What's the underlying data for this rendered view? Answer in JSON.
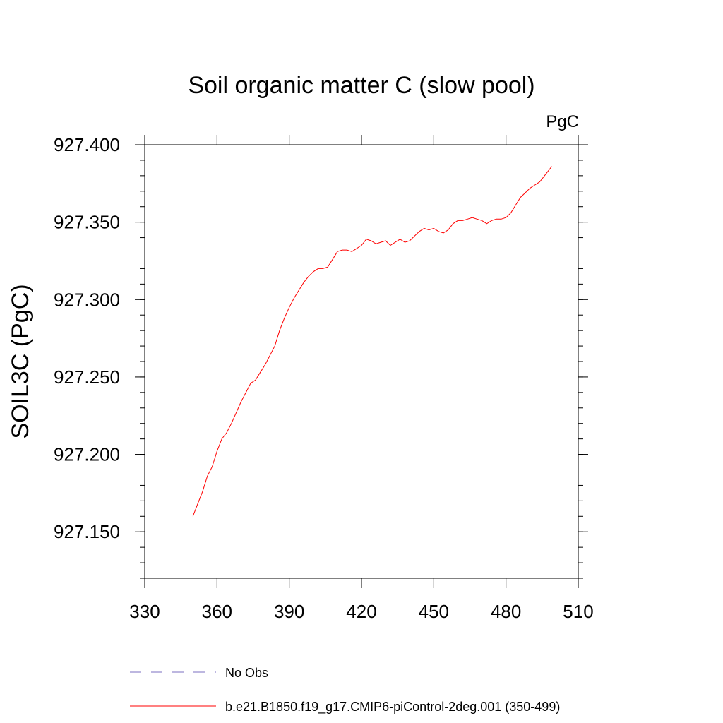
{
  "chart_data": {
    "type": "line",
    "title": "Soil organic matter C (slow pool)",
    "units_label": "PgC",
    "xlabel": "",
    "ylabel": "SOIL3C  (PgC)",
    "xlim": [
      330,
      510
    ],
    "ylim": [
      927.12,
      927.4
    ],
    "x_ticks": [
      330,
      360,
      390,
      420,
      450,
      480,
      510
    ],
    "y_ticks": [
      927.15,
      927.2,
      927.25,
      927.3,
      927.35,
      927.4
    ],
    "x_tick_labels": [
      "330",
      "360",
      "390",
      "420",
      "450",
      "480",
      "510"
    ],
    "y_tick_labels": [
      "927.150",
      "927.200",
      "927.250",
      "927.300",
      "927.350",
      "927.400"
    ],
    "grid": false,
    "legend_position": "bottom",
    "series": [
      {
        "name": "No Obs",
        "color": "#7b6fc0",
        "dash": "dashed",
        "x": [],
        "y": []
      },
      {
        "name": "b.e21.B1850.f19_g17.CMIP6-piControl-2deg.001 (350-499)",
        "color": "#ff0000",
        "dash": "solid",
        "x": [
          350,
          352,
          354,
          356,
          358,
          360,
          362,
          364,
          366,
          368,
          370,
          372,
          374,
          376,
          378,
          380,
          382,
          384,
          386,
          388,
          390,
          392,
          394,
          396,
          398,
          400,
          402,
          404,
          406,
          408,
          410,
          412,
          414,
          416,
          418,
          420,
          422,
          424,
          426,
          428,
          430,
          432,
          434,
          436,
          438,
          440,
          442,
          444,
          446,
          448,
          450,
          452,
          454,
          456,
          458,
          460,
          462,
          464,
          466,
          468,
          470,
          472,
          474,
          476,
          478,
          480,
          482,
          484,
          486,
          488,
          490,
          492,
          494,
          496,
          498,
          499
        ],
        "y": [
          927.16,
          927.168,
          927.176,
          927.186,
          927.192,
          927.202,
          927.21,
          927.214,
          927.22,
          927.227,
          927.234,
          927.24,
          927.246,
          927.248,
          927.253,
          927.258,
          927.264,
          927.27,
          927.28,
          927.288,
          927.295,
          927.301,
          927.306,
          927.311,
          927.315,
          927.318,
          927.32,
          927.32,
          927.321,
          927.326,
          927.331,
          927.332,
          927.332,
          927.331,
          927.333,
          927.335,
          927.339,
          927.338,
          927.336,
          927.337,
          927.338,
          927.335,
          927.337,
          927.339,
          927.337,
          927.338,
          927.341,
          927.344,
          927.346,
          927.345,
          927.346,
          927.344,
          927.343,
          927.345,
          927.349,
          927.351,
          927.351,
          927.352,
          927.353,
          927.352,
          927.351,
          927.349,
          927.351,
          927.352,
          927.352,
          927.353,
          927.356,
          927.361,
          927.366,
          927.369,
          927.372,
          927.374,
          927.376,
          927.38,
          927.384,
          927.386
        ]
      }
    ]
  }
}
